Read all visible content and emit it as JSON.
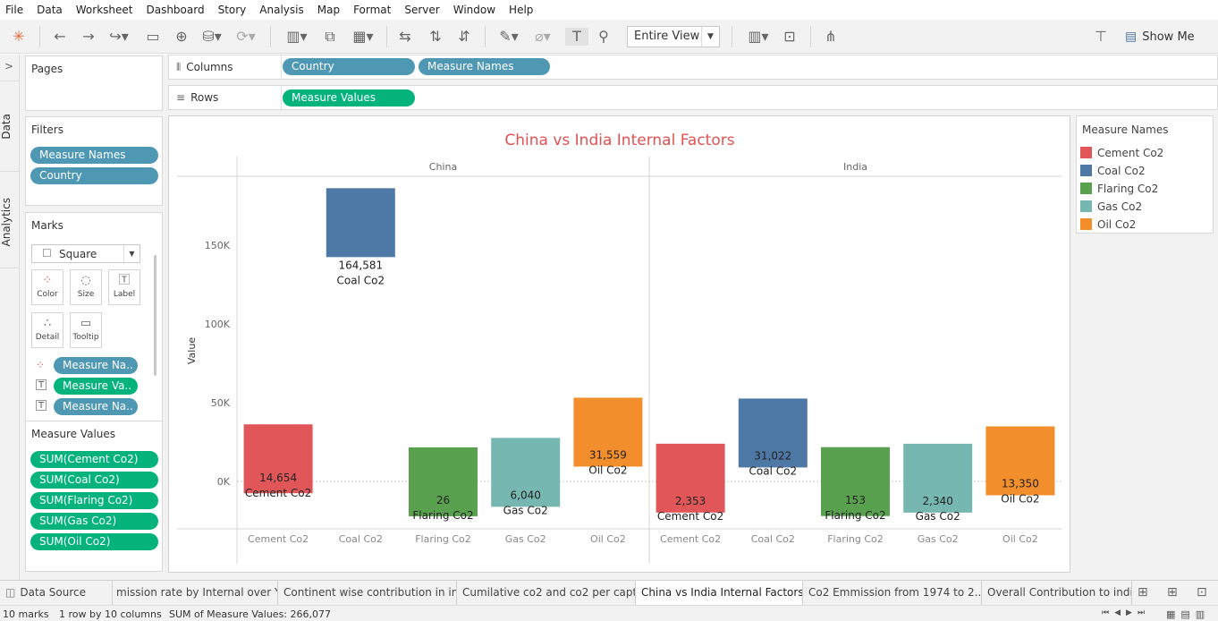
{
  "menu": [
    "File",
    "Data",
    "Worksheet",
    "Dashboard",
    "Story",
    "Analysis",
    "Map",
    "Format",
    "Server",
    "Window",
    "Help"
  ],
  "toolbar": {
    "view_select": "Entire View",
    "show_me": "Show Me"
  },
  "sidebar": {
    "data_tab": "Data",
    "analytics_tab": "Analytics"
  },
  "pages": {
    "title": "Pages"
  },
  "filters": {
    "title": "Filters",
    "items": [
      "Measure Names",
      "Country"
    ]
  },
  "marks": {
    "title": "Marks",
    "type": "Square",
    "buttons": [
      "Color",
      "Size",
      "Label",
      "Detail",
      "Tooltip"
    ],
    "fields": [
      "Measure Na..",
      "Measure Va..",
      "Measure Na.."
    ]
  },
  "measure_values": {
    "title": "Measure Values",
    "items": [
      "SUM(Cement Co2)",
      "SUM(Coal Co2)",
      "SUM(Flaring Co2)",
      "SUM(Gas Co2)",
      "SUM(Oil Co2)"
    ]
  },
  "shelves": {
    "columns_label": "Columns",
    "columns": [
      "Country",
      "Measure Names"
    ],
    "rows_label": "Rows",
    "rows": [
      "Measure Values"
    ]
  },
  "legend": {
    "title": "Measure Names"
  },
  "colors": {
    "Cement Co2": "#e15759",
    "Coal Co2": "#4e79a7",
    "Flaring Co2": "#59a14f",
    "Gas Co2": "#76b7b2",
    "Oil Co2": "#f28e2b",
    "title": "#e05252"
  },
  "chart_data": {
    "type": "bar",
    "title": "China vs India Internal Factors",
    "ylabel": "Value",
    "xlabel": "",
    "ylim": [
      -30000,
      195000
    ],
    "yticks": [
      0,
      50000,
      100000,
      150000
    ],
    "ytick_labels": [
      "0K",
      "50K",
      "100K",
      "150K"
    ],
    "panels": [
      "China",
      "India"
    ],
    "categories": [
      "Cement Co2",
      "Coal Co2",
      "Flaring Co2",
      "Gas Co2",
      "Oil Co2"
    ],
    "series": [
      {
        "name": "China",
        "values": [
          14654,
          164581,
          26,
          6040,
          31559
        ],
        "labels": [
          "14,654",
          "164,581",
          "26",
          "6,040",
          "31,559"
        ]
      },
      {
        "name": "India",
        "values": [
          2353,
          31022,
          153,
          2340,
          13350
        ],
        "labels": [
          "2,353",
          "31,022",
          "153",
          "2,340",
          "13,350"
        ]
      }
    ]
  },
  "tabs": {
    "data_source": "Data Source",
    "sheets": [
      "mission rate by Internal over Y...",
      "Continent wise contribution in in...",
      "Cumilative co2 and co2 per capt...",
      "China vs India Internal Factors",
      "Co2 Emmission from 1974 to 2...",
      "Overall Contribution to india in"
    ],
    "active": 3
  },
  "status": {
    "marks": "10 marks",
    "rows_cols": "1 row by 10 columns",
    "sum": "SUM of Measure Values: 266,077"
  }
}
